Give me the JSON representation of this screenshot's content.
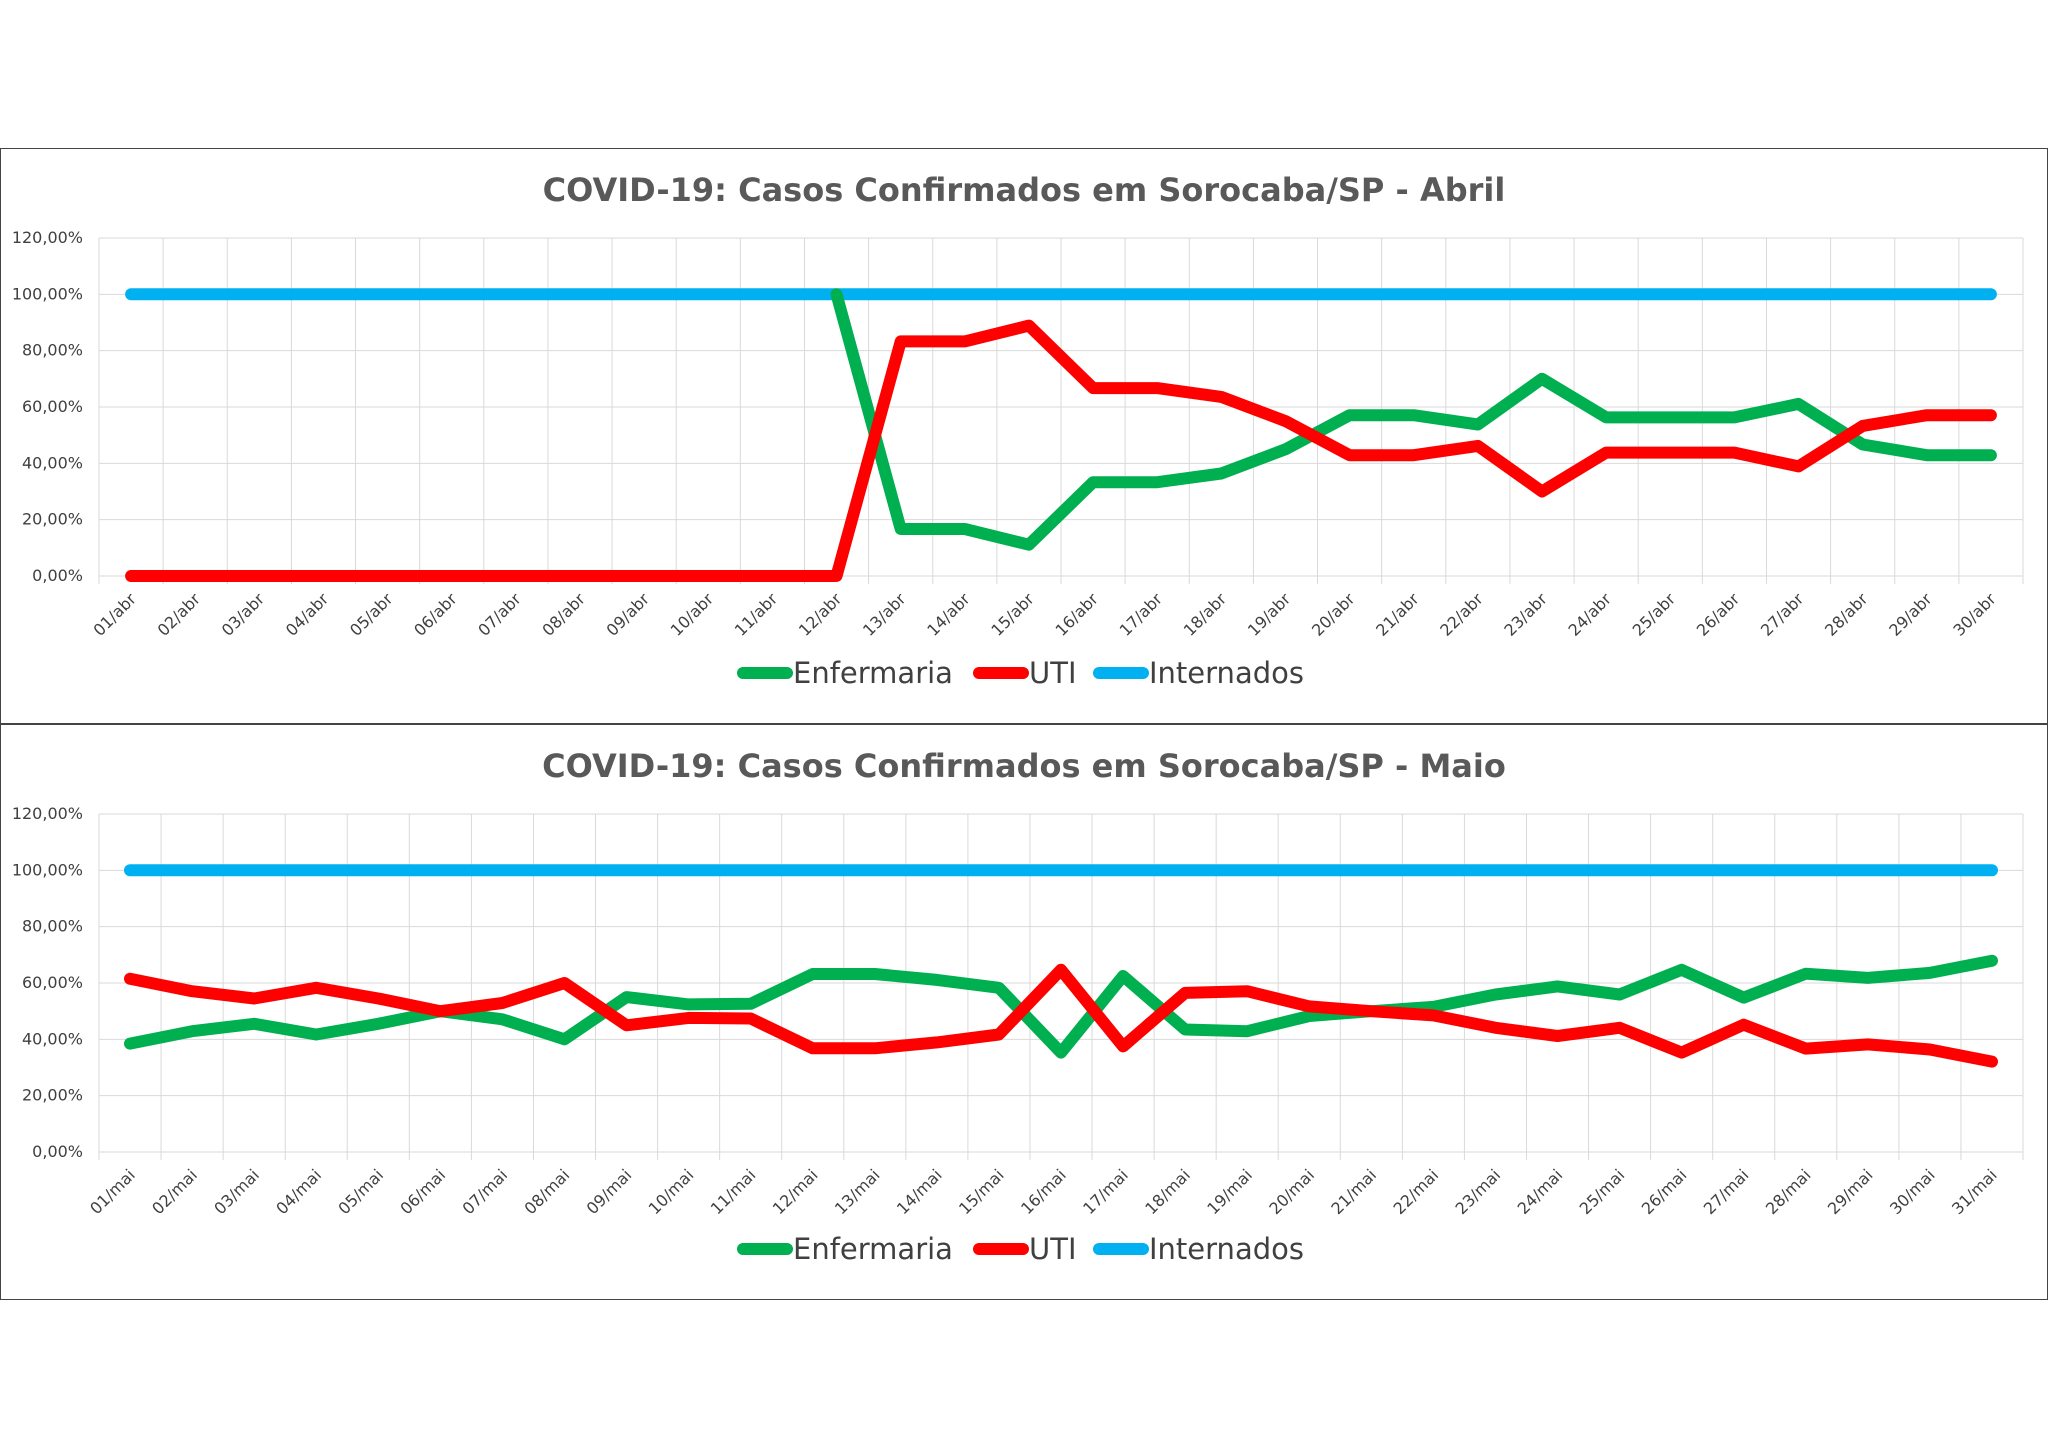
{
  "chart_data": [
    {
      "type": "line",
      "title": "COVID-19: Casos Confirmados em Sorocaba/SP - Abril",
      "xlabel": "",
      "ylabel": "",
      "ylim": [
        0,
        120
      ],
      "y_ticks": [
        "0,00%",
        "20,00%",
        "40,00%",
        "60,00%",
        "80,00%",
        "100,00%",
        "120,00%"
      ],
      "grid": "both",
      "legend": "bottom",
      "categories": [
        "01/abr",
        "02/abr",
        "03/abr",
        "04/abr",
        "05/abr",
        "06/abr",
        "07/abr",
        "08/abr",
        "09/abr",
        "10/abr",
        "11/abr",
        "12/abr",
        "13/abr",
        "14/abr",
        "15/abr",
        "16/abr",
        "17/abr",
        "18/abr",
        "19/abr",
        "20/abr",
        "21/abr",
        "22/abr",
        "23/abr",
        "24/abr",
        "25/abr",
        "26/abr",
        "27/abr",
        "28/abr",
        "29/abr",
        "30/abr"
      ],
      "series": [
        {
          "name": "Enfermaria",
          "color": "#00b050",
          "values": [
            null,
            null,
            null,
            null,
            null,
            null,
            null,
            null,
            null,
            null,
            null,
            100,
            16.7,
            16.7,
            11.1,
            33.3,
            33.3,
            36.4,
            45,
            57.1,
            57.1,
            53.8,
            70,
            56.3,
            56.3,
            56.3,
            61.1,
            46.7,
            42.9,
            42.9
          ]
        },
        {
          "name": "UTI",
          "color": "#ff0000",
          "values": [
            0,
            0,
            0,
            0,
            0,
            0,
            0,
            0,
            0,
            0,
            0,
            0,
            83.3,
            83.3,
            88.9,
            66.7,
            66.7,
            63.6,
            55,
            42.9,
            42.9,
            46.2,
            30,
            43.8,
            43.8,
            43.8,
            38.9,
            53.3,
            57.1,
            57.1
          ]
        },
        {
          "name": "Internados",
          "color": "#00b0f0",
          "values": [
            100,
            100,
            100,
            100,
            100,
            100,
            100,
            100,
            100,
            100,
            100,
            100,
            100,
            100,
            100,
            100,
            100,
            100,
            100,
            100,
            100,
            100,
            100,
            100,
            100,
            100,
            100,
            100,
            100,
            100
          ]
        }
      ]
    },
    {
      "type": "line",
      "title": "COVID-19: Casos Confirmados em Sorocaba/SP - Maio",
      "xlabel": "",
      "ylabel": "",
      "ylim": [
        0,
        120
      ],
      "y_ticks": [
        "0,00%",
        "20,00%",
        "40,00%",
        "60,00%",
        "80,00%",
        "100,00%",
        "120,00%"
      ],
      "grid": "both",
      "legend": "bottom",
      "categories": [
        "01/mai",
        "02/mai",
        "03/mai",
        "04/mai",
        "05/mai",
        "06/mai",
        "07/mai",
        "08/mai",
        "09/mai",
        "10/mai",
        "11/mai",
        "12/mai",
        "13/mai",
        "14/mai",
        "15/mai",
        "16/mai",
        "17/mai",
        "18/mai",
        "19/mai",
        "20/mai",
        "21/mai",
        "22/mai",
        "23/mai",
        "24/mai",
        "25/mai",
        "26/mai",
        "27/mai",
        "28/mai",
        "29/mai",
        "30/mai",
        "31/mai"
      ],
      "series": [
        {
          "name": "Enfermaria",
          "color": "#00b050",
          "values": [
            38.5,
            42.9,
            45.5,
            41.7,
            45.5,
            50,
            47.1,
            40,
            55,
            52.4,
            52.6,
            63.2,
            63.2,
            61.1,
            58.3,
            35.3,
            62.5,
            43.5,
            42.9,
            48.3,
            50,
            51.5,
            55.9,
            58.8,
            55.9,
            64.7,
            54.8,
            63.3,
            61.8,
            63.6,
            67.9
          ]
        },
        {
          "name": "UTI",
          "color": "#ff0000",
          "values": [
            61.5,
            57.1,
            54.5,
            58.3,
            54.5,
            50,
            52.9,
            60,
            45,
            47.6,
            47.4,
            36.8,
            36.8,
            38.9,
            41.7,
            64.7,
            37.5,
            56.5,
            57.1,
            51.7,
            50,
            48.5,
            44.1,
            41.2,
            44.1,
            35.3,
            45.2,
            36.7,
            38.2,
            36.4,
            32.1
          ]
        },
        {
          "name": "Internados",
          "color": "#00b0f0",
          "values": [
            100,
            100,
            100,
            100,
            100,
            100,
            100,
            100,
            100,
            100,
            100,
            100,
            100,
            100,
            100,
            100,
            100,
            100,
            100,
            100,
            100,
            100,
            100,
            100,
            100,
            100,
            100,
            100,
            100,
            100,
            100
          ]
        }
      ]
    }
  ]
}
